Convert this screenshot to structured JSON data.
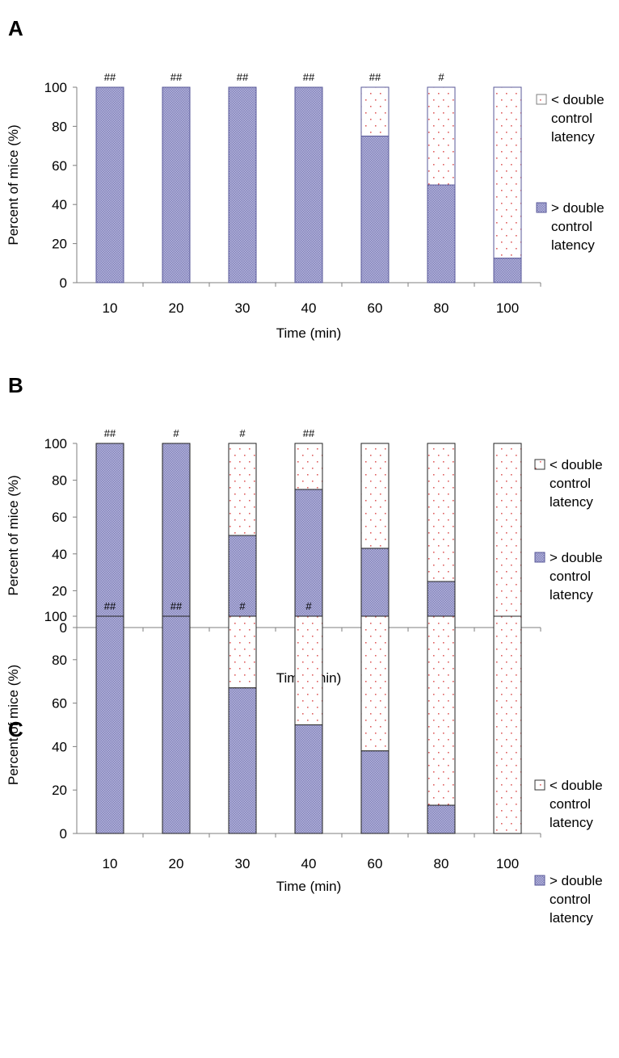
{
  "figure": {
    "panels": [
      {
        "letter": "A"
      },
      {
        "letter": "B"
      },
      {
        "letter": "C"
      }
    ],
    "colors": {
      "above_fill": "#aaaad2",
      "above_stroke": "#585898",
      "dot": "#e06060",
      "axis": "#7f7f7f"
    }
  },
  "chart_data": [
    {
      "type": "bar",
      "stacked": true,
      "categories": [
        "10",
        "20",
        "30",
        "40",
        "60",
        "80",
        "100"
      ],
      "series": [
        {
          "name": "> double control latency",
          "values": [
            100,
            100,
            100,
            100,
            75,
            50,
            12.5
          ]
        },
        {
          "name": "< double control latency",
          "values": [
            0,
            0,
            0,
            0,
            25,
            50,
            87.5
          ]
        }
      ],
      "annotations": [
        "##",
        "##",
        "##",
        "##",
        "##",
        "#",
        ""
      ],
      "xlabel": "Time (min)",
      "ylabel": "Percent of mice (%)",
      "yticks": [
        "0",
        "20",
        "40",
        "60",
        "80",
        "100"
      ],
      "ylim": [
        0,
        100
      ],
      "legend": {
        "position": "right",
        "entries": [
          {
            "lines": [
              "< double",
              "control",
              "latency"
            ]
          },
          {
            "lines": [
              "> double",
              "control",
              "latency"
            ]
          }
        ]
      }
    },
    {
      "type": "bar",
      "stacked": true,
      "categories": [
        "10",
        "20",
        "30",
        "40",
        "60",
        "80",
        "100"
      ],
      "series": [
        {
          "name": "> double control latency",
          "values": [
            100,
            100,
            50,
            75,
            43,
            25,
            0
          ]
        },
        {
          "name": "< double control latency",
          "values": [
            0,
            0,
            50,
            25,
            57,
            75,
            100
          ]
        }
      ],
      "annotations": [
        "##",
        "#",
        "#",
        "##",
        "",
        "",
        ""
      ],
      "xlabel": "Time (min)",
      "ylabel": "Percent of mice (%)",
      "yticks": [
        "0",
        "20",
        "40",
        "60",
        "80",
        "100"
      ],
      "ylim": [
        0,
        100
      ],
      "legend": {
        "position": "right",
        "entries": [
          {
            "lines": [
              "< double",
              "control",
              "latency"
            ]
          },
          {
            "lines": [
              "> double",
              "control",
              "latency"
            ]
          }
        ]
      }
    },
    {
      "type": "bar",
      "stacked": true,
      "categories": [
        "10",
        "20",
        "30",
        "40",
        "60",
        "80",
        "100"
      ],
      "series": [
        {
          "name": "> double control latency",
          "values": [
            100,
            100,
            67,
            50,
            38,
            13,
            0
          ]
        },
        {
          "name": "< double control latency",
          "values": [
            0,
            0,
            33,
            50,
            62,
            87,
            100
          ]
        }
      ],
      "annotations": [
        "##",
        "##",
        "#",
        "#",
        "",
        "",
        ""
      ],
      "xlabel": "Time (min)",
      "ylabel": "Percent of mice (%)",
      "yticks": [
        "0",
        "20",
        "40",
        "60",
        "80",
        "100"
      ],
      "ylim": [
        0,
        100
      ],
      "legend": {
        "position": "right",
        "entries": [
          {
            "lines": [
              "< double",
              "control",
              "latency"
            ]
          },
          {
            "lines": [
              "> double",
              "control",
              "latency"
            ]
          }
        ]
      }
    }
  ]
}
